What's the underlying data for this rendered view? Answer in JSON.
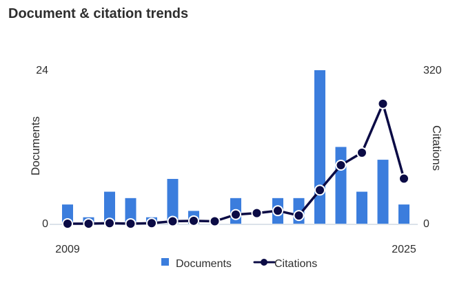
{
  "title": "Document & citation trends",
  "colors": {
    "bars": "#3b7ddd",
    "line": "#0b0b45",
    "axis": "#cfd8e3",
    "text": "#2e2e2e"
  },
  "chart_data": {
    "type": "bar",
    "title": "Document & citation trends",
    "x": [
      2009,
      2010,
      2011,
      2012,
      2013,
      2014,
      2015,
      2016,
      2017,
      2018,
      2019,
      2020,
      2021,
      2022,
      2023,
      2024,
      2025
    ],
    "x_tick_labels": [
      "2009",
      "2025"
    ],
    "series": [
      {
        "name": "Documents",
        "type": "bar",
        "axis": "left",
        "values": [
          3,
          1,
          5,
          4,
          1,
          7,
          2,
          0,
          4,
          0,
          4,
          4,
          24,
          12,
          5,
          10,
          3
        ]
      },
      {
        "name": "Citations",
        "type": "line",
        "axis": "right",
        "values": [
          0,
          0,
          1,
          0,
          1,
          5,
          6,
          5,
          19,
          22,
          27,
          17,
          70,
          122,
          148,
          250,
          94
        ]
      }
    ],
    "ylabel_left": "Documents",
    "ylim_left": [
      0,
      24
    ],
    "yticks_left": [
      "0",
      "24"
    ],
    "ylabel_right": "Citations",
    "ylim_right": [
      0,
      320
    ],
    "yticks_right": [
      "0",
      "320"
    ],
    "legend": {
      "position": "bottom",
      "items": [
        "Documents",
        "Citations"
      ]
    },
    "grid": false
  }
}
